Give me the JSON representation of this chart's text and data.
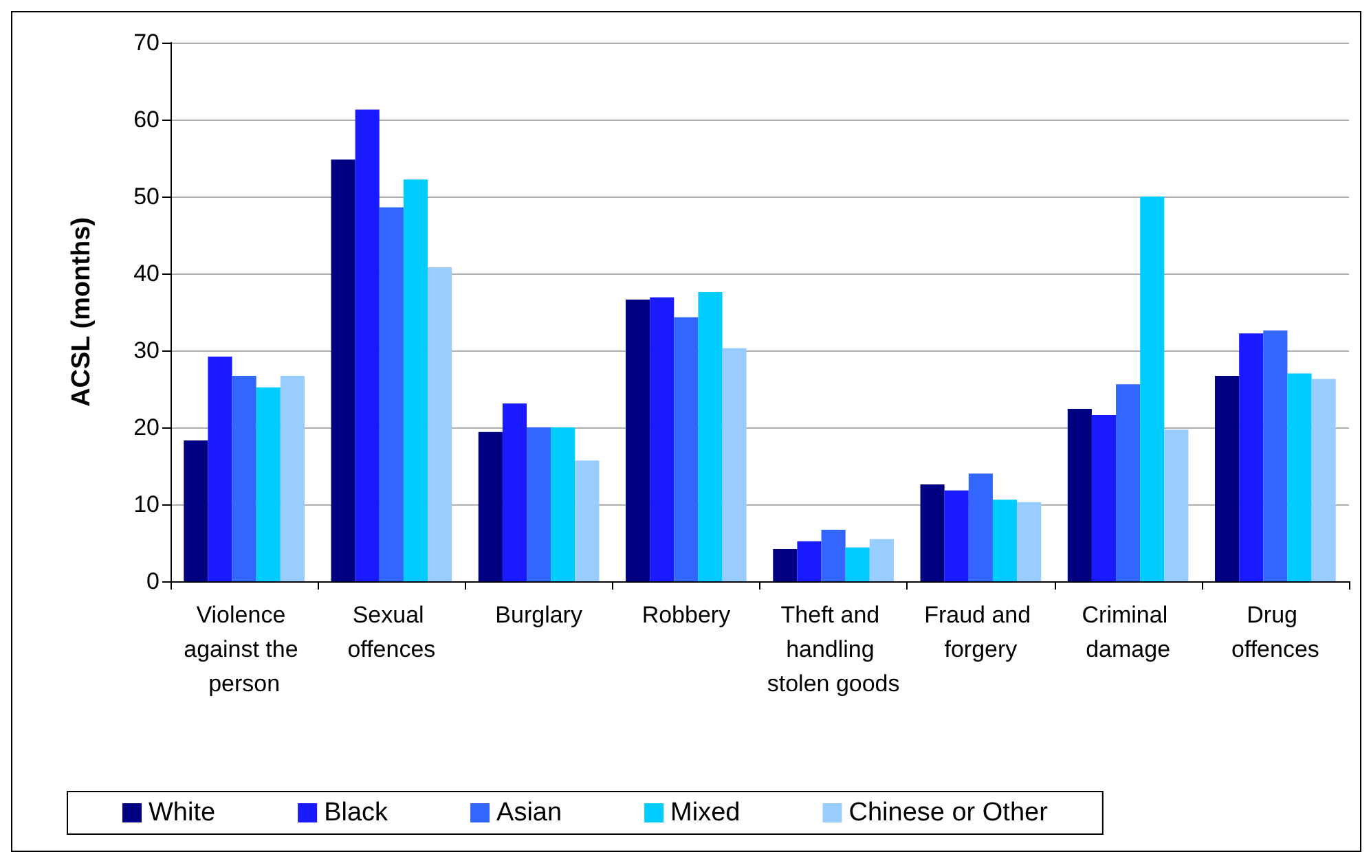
{
  "chart_data": {
    "type": "bar",
    "ylabel": "ACSL (months)",
    "categories": [
      "Violence against the person",
      "Sexual offences",
      "Burglary",
      "Robbery",
      "Theft and handling stolen goods",
      "Fraud and forgery",
      "Criminal damage",
      "Drug offences"
    ],
    "series": [
      {
        "name": "White",
        "color": "#000080",
        "values": [
          18.3,
          54.8,
          19.4,
          36.6,
          4.2,
          12.6,
          22.4,
          26.7
        ]
      },
      {
        "name": "Black",
        "color": "#1a1aff",
        "values": [
          29.2,
          61.3,
          23.1,
          36.9,
          5.2,
          11.8,
          21.6,
          32.2
        ]
      },
      {
        "name": "Asian",
        "color": "#3366ff",
        "values": [
          26.7,
          48.6,
          20.0,
          34.3,
          6.7,
          14.0,
          25.6,
          32.6
        ]
      },
      {
        "name": "Mixed",
        "color": "#00ccff",
        "values": [
          25.2,
          52.2,
          20.0,
          37.6,
          4.4,
          10.6,
          50.0,
          27.0
        ]
      },
      {
        "name": "Chinese or Other",
        "color": "#99ccff",
        "values": [
          26.7,
          40.8,
          15.7,
          30.3,
          5.5,
          10.3,
          19.7,
          26.3
        ]
      }
    ],
    "ylim": [
      0,
      70
    ],
    "yticks": [
      0,
      10,
      20,
      30,
      40,
      50,
      60,
      70
    ],
    "grid": "y",
    "legend": "bottom"
  }
}
